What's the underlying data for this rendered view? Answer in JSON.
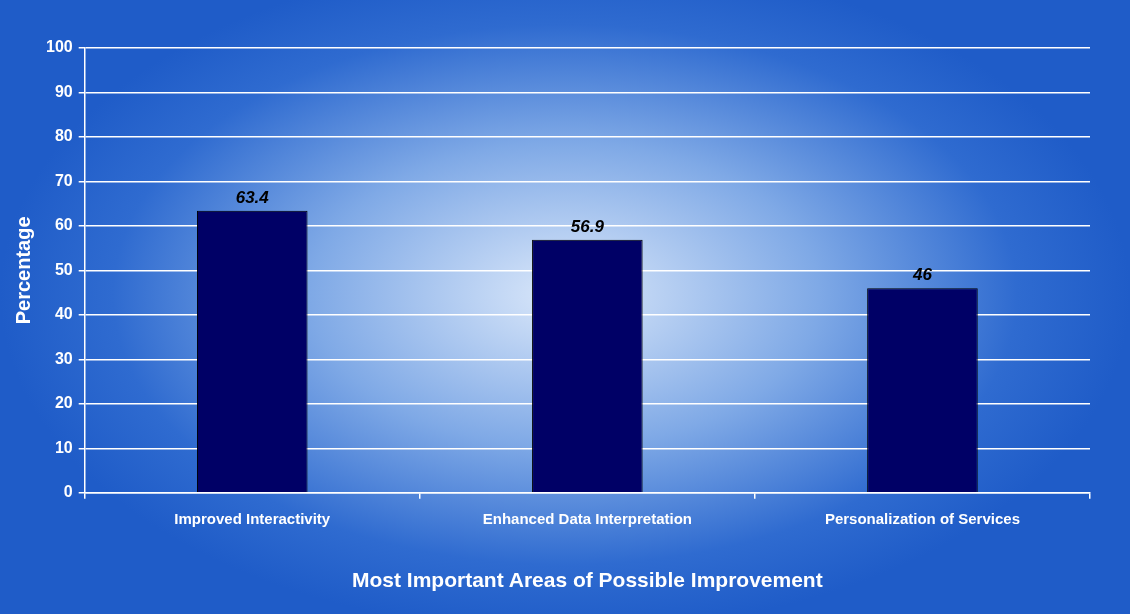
{
  "chart_data": {
    "type": "bar",
    "xlabel": "Most Important Areas of Possible Improvement",
    "ylabel": "Percentage",
    "categories": [
      "Improved Interactivity",
      "Enhanced Data Interpretation",
      "Personalization of Services"
    ],
    "values": [
      63.4,
      56.9,
      46
    ],
    "color": "#000066",
    "ylim": [
      0,
      100
    ],
    "yticks": [
      0,
      10,
      20,
      30,
      40,
      50,
      60,
      70,
      80,
      90,
      100
    ],
    "grid": "y",
    "data_labels": true,
    "legend": false
  }
}
